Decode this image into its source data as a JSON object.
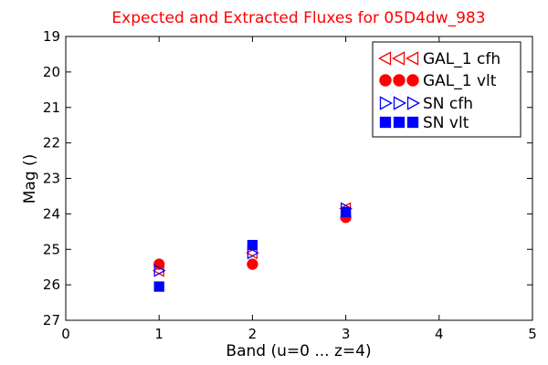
{
  "chart_data": {
    "type": "scatter",
    "title": "Expected and Extracted Fluxes for 05D4dw_983",
    "xlabel": "Band (u=0 ... z=4)",
    "ylabel": "Mag ()",
    "xlim": [
      0,
      5
    ],
    "ylim": [
      27,
      19
    ],
    "y_inverted": true,
    "grid": false,
    "legend_position": "top-right",
    "xticks": [
      0,
      1,
      2,
      3,
      4,
      5
    ],
    "yticks": [
      19,
      20,
      21,
      22,
      23,
      24,
      25,
      26,
      27
    ],
    "series": [
      {
        "name": "GAL_1 cfh",
        "marker": "triangle-left",
        "filled": false,
        "color": "#ff0000",
        "x": [
          1,
          2,
          3
        ],
        "y": [
          25.6,
          25.1,
          23.85
        ]
      },
      {
        "name": "GAL_1 vlt",
        "marker": "circle",
        "filled": true,
        "color": "#ff0000",
        "x": [
          1,
          2,
          3
        ],
        "y": [
          25.42,
          25.42,
          24.1
        ]
      },
      {
        "name": "SN cfh",
        "marker": "triangle-right",
        "filled": false,
        "color": "#0000ff",
        "x": [
          1,
          2,
          3
        ],
        "y": [
          25.6,
          25.1,
          23.85
        ]
      },
      {
        "name": "SN vlt",
        "marker": "square",
        "filled": true,
        "color": "#0000ff",
        "x": [
          1,
          2,
          3
        ],
        "y": [
          26.05,
          24.88,
          23.95
        ]
      }
    ]
  }
}
